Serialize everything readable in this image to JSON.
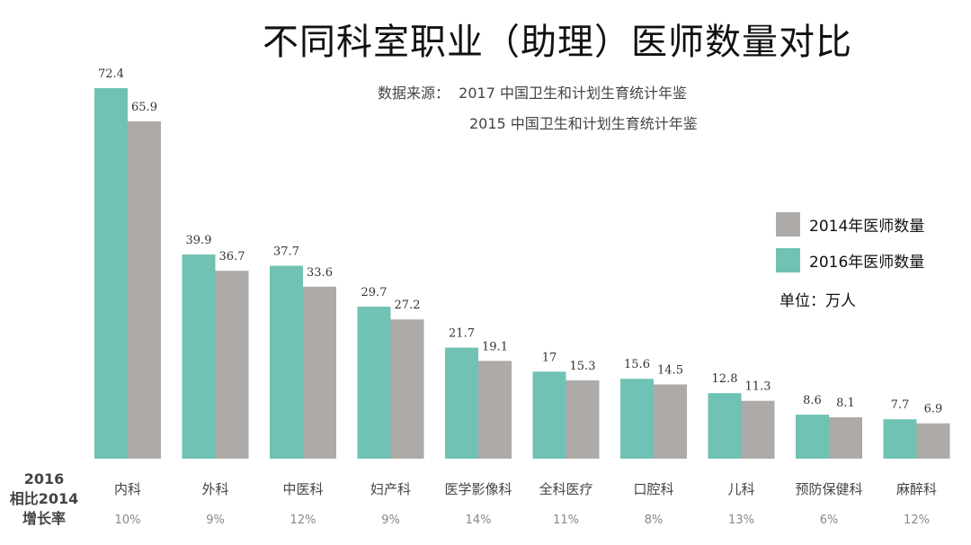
{
  "title": "不同科室职业（助理）医师数量对比",
  "source": {
    "line1": "数据来源：  2017 中国卫生和计划生育统计年鉴",
    "line2": "2015 中国卫生和计划生育统计年鉴"
  },
  "unit": "单位：万人",
  "growth_row_label": [
    "2016",
    "相比2014",
    "增长率"
  ],
  "colors": {
    "series_2016": "#6fc2b4",
    "series_2014": "#aeaaa8",
    "highlight": "#d42020",
    "category_text": "#444444",
    "growth_text": "#888888"
  },
  "chart_data": {
    "type": "bar",
    "title": "不同科室职业（助理）医师数量对比",
    "xlabel": "",
    "ylabel": "",
    "ylim": [
      0,
      75
    ],
    "legend_position": "right",
    "grid": false,
    "categories": [
      "内科",
      "外科",
      "中医科",
      "妇产科",
      "医学影像科",
      "全科医疗",
      "口腔科",
      "儿科",
      "预防保健科",
      "麻醉科"
    ],
    "series": [
      {
        "name": "2016年医师数量",
        "values": [
          72.4,
          39.9,
          37.7,
          29.7,
          21.7,
          17,
          15.6,
          12.8,
          8.6,
          7.7
        ]
      },
      {
        "name": "2014年医师数量",
        "values": [
          65.9,
          36.7,
          33.6,
          27.2,
          19.1,
          15.3,
          14.5,
          11.3,
          8.1,
          6.9
        ]
      }
    ],
    "value_labels_2016": [
      "72.4",
      "39.9",
      "37.7",
      "29.7",
      "21.7",
      "17",
      "15.6",
      "12.8",
      "8.6",
      "7.7"
    ],
    "value_labels_2014": [
      "65.9",
      "36.7",
      "33.6",
      "27.2",
      "19.1",
      "15.3",
      "14.5",
      "11.3",
      "8.1",
      "6.9"
    ],
    "growth_rates": [
      "10%",
      "9%",
      "12%",
      "9%",
      "14%",
      "11%",
      "8%",
      "13%",
      "6%",
      "12%"
    ],
    "highlight_category": "儿科"
  },
  "legend": [
    {
      "label": "2014年医师数量",
      "color": "#aeaaa8"
    },
    {
      "label": "2016年医师数量",
      "color": "#6fc2b4"
    }
  ]
}
